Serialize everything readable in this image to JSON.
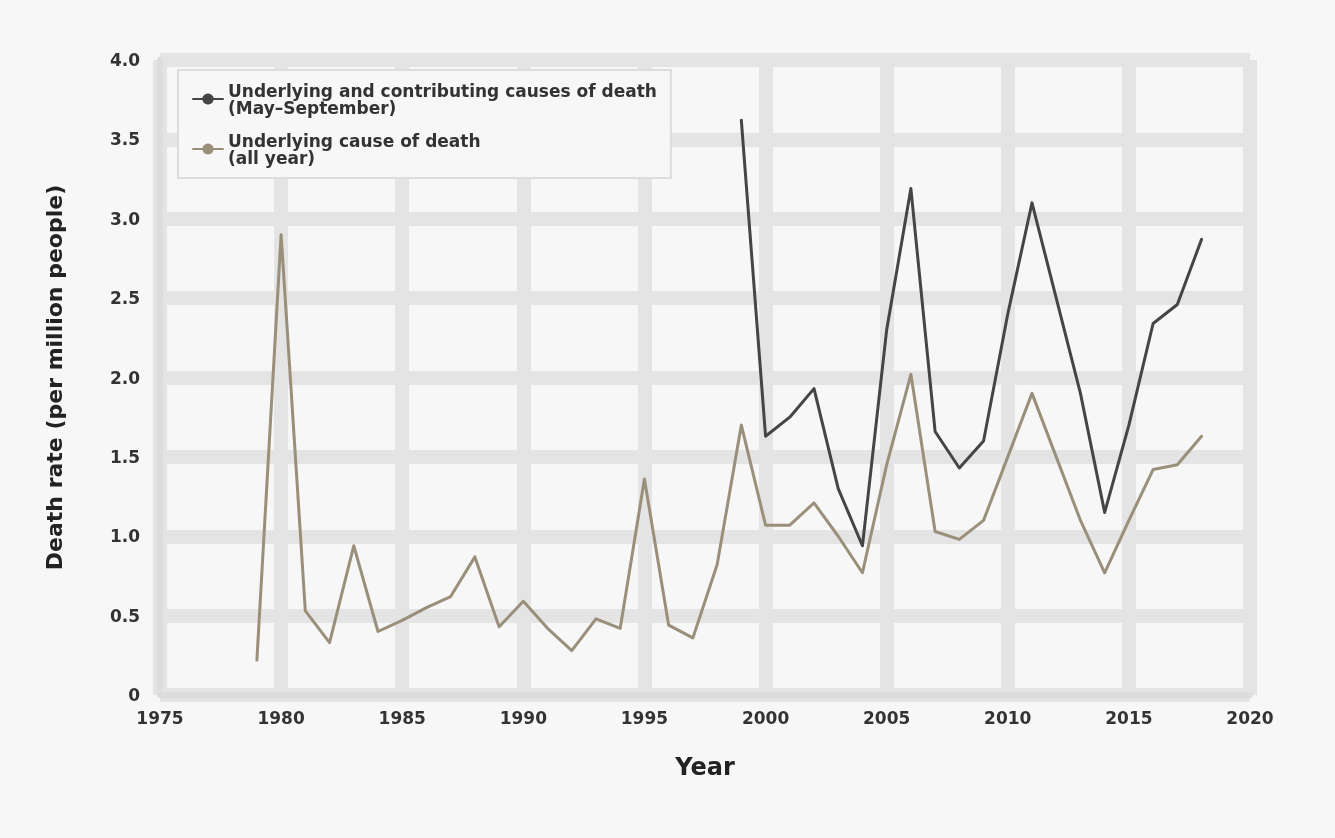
{
  "chart_data": {
    "type": "line",
    "xlabel": "Year",
    "ylabel": "Death rate (per million people)",
    "xlim": [
      1975,
      2020
    ],
    "xticks": [
      1975,
      1980,
      1985,
      1990,
      1995,
      2000,
      2005,
      2010,
      2015,
      2020
    ],
    "ylim": [
      0,
      4
    ],
    "yticks": [
      0,
      0.5,
      {
        "value": 1,
        "label": "1.0"
      },
      1.5,
      {
        "value": 2,
        "label": "2.0"
      },
      2.5,
      {
        "value": 3,
        "label": "3.0"
      },
      3.5,
      {
        "value": 4,
        "label": "4.0"
      }
    ],
    "grid": true,
    "legend": "top left",
    "marker": "none",
    "line_style": "solid",
    "series": [
      {
        "name": "Underlying and contributing causes of death (May–September)",
        "color": "#454545",
        "x": [
          1999,
          2000,
          2001,
          2002,
          2003,
          2004,
          2005,
          2006,
          2007,
          2008,
          2009,
          2010,
          2011,
          2012,
          2013,
          2014,
          2015,
          2016,
          2017,
          2018
        ],
        "values": [
          3.62,
          1.63,
          1.75,
          1.93,
          1.3,
          0.94,
          2.3,
          3.19,
          1.66,
          1.43,
          1.6,
          2.4,
          3.1,
          2.5,
          1.9,
          1.15,
          1.7,
          2.34,
          2.46,
          2.87
        ]
      },
      {
        "name": "Underlying cause of death (all year)",
        "color": "#9a8f7a",
        "x": [
          1979,
          1980,
          1981,
          1982,
          1983,
          1984,
          1985,
          1986,
          1987,
          1988,
          1989,
          1990,
          1991,
          1992,
          1993,
          1994,
          1995,
          1996,
          1997,
          1998,
          1999,
          2000,
          2001,
          2002,
          2003,
          2004,
          2005,
          2006,
          2007,
          2008,
          2009,
          2010,
          2011,
          2012,
          2013,
          2014,
          2015,
          2016,
          2017,
          2018
        ],
        "values": [
          0.22,
          2.9,
          0.53,
          0.33,
          0.94,
          0.4,
          0.47,
          0.55,
          0.62,
          0.87,
          0.43,
          0.59,
          0.42,
          0.28,
          0.48,
          0.42,
          1.36,
          0.44,
          0.36,
          0.82,
          1.7,
          1.07,
          1.07,
          1.21,
          1.0,
          0.77,
          1.45,
          2.02,
          1.03,
          0.98,
          1.1,
          1.5,
          1.9,
          1.5,
          1.1,
          0.77,
          1.1,
          1.42,
          1.45,
          1.63
        ]
      }
    ]
  }
}
